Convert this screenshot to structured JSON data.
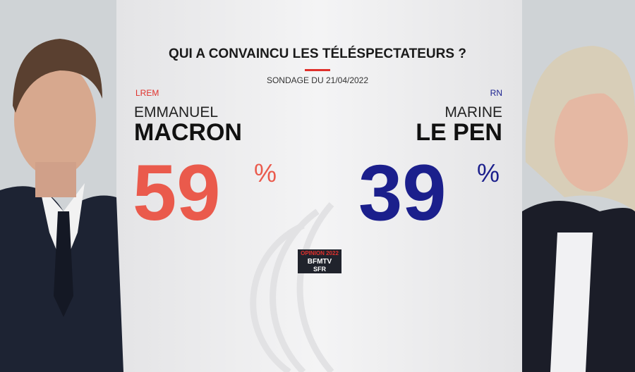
{
  "header": {
    "title": "QUI A CONVAINCU LES TÉLÉSPECTATEURS ?",
    "subtitle": "SONDAGE DU 21/04/2022"
  },
  "candidates": [
    {
      "party": "LREM",
      "first_name": "EMMANUEL",
      "last_name": "MACRON",
      "value": 59,
      "unit": "%"
    },
    {
      "party": "RN",
      "first_name": "MARINE",
      "last_name": "LE PEN",
      "value": 39,
      "unit": "%"
    }
  ],
  "logo": {
    "line1": "OPINION 2022",
    "line2": "BFMTV",
    "line3": "SFR"
  }
}
